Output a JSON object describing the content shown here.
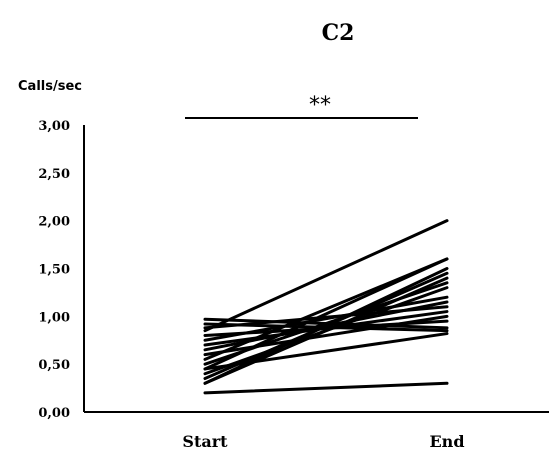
{
  "chart_data": {
    "type": "line",
    "title": "C2",
    "ylabel": "Calls/sec",
    "xlabel": "",
    "categories": [
      "Start",
      "End"
    ],
    "ylim": [
      0,
      3
    ],
    "yticks": [
      "0,00",
      "0,50",
      "1,00",
      "1,50",
      "2,00",
      "2,50",
      "3,00"
    ],
    "annotation": {
      "text": "**",
      "span": [
        "Start",
        "End"
      ]
    },
    "series": [
      {
        "values": [
          0.85,
          2.0
        ]
      },
      {
        "values": [
          0.55,
          1.6
        ]
      },
      {
        "values": [
          0.45,
          1.6
        ]
      },
      {
        "values": [
          0.3,
          1.5
        ]
      },
      {
        "values": [
          0.35,
          1.45
        ]
      },
      {
        "values": [
          0.3,
          1.4
        ]
      },
      {
        "values": [
          0.5,
          1.35
        ]
      },
      {
        "values": [
          0.4,
          1.3
        ]
      },
      {
        "values": [
          0.75,
          1.2
        ]
      },
      {
        "values": [
          0.65,
          1.15
        ]
      },
      {
        "values": [
          0.88,
          1.1
        ]
      },
      {
        "values": [
          0.7,
          1.05
        ]
      },
      {
        "values": [
          0.6,
          1.0
        ]
      },
      {
        "values": [
          0.8,
          0.95
        ]
      },
      {
        "values": [
          0.97,
          0.88
        ]
      },
      {
        "values": [
          0.92,
          0.85
        ]
      },
      {
        "values": [
          0.45,
          0.82
        ]
      },
      {
        "values": [
          0.2,
          0.3
        ]
      }
    ]
  }
}
